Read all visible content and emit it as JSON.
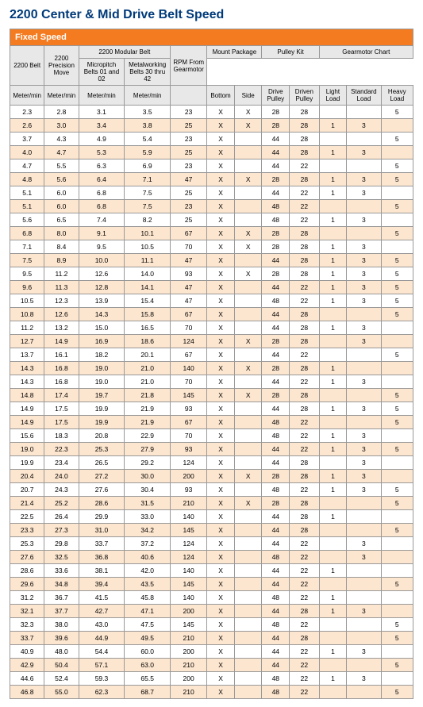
{
  "title": "2200 Center & Mid Drive Belt Speed",
  "section": "Fixed Speed",
  "header": {
    "r1": [
      {
        "t": "2200 Belt",
        "rs": 2
      },
      {
        "t": "2200 Precision Move",
        "rs": 2
      },
      {
        "t": "2200 Modular Belt",
        "cs": 2
      },
      {
        "t": "RPM From Gearmotor",
        "rs": 2
      },
      {
        "t": "Mount Package",
        "cs": 2
      },
      {
        "t": "Pulley Kit",
        "cs": 2
      },
      {
        "t": "Gearmotor Chart",
        "cs": 3
      }
    ],
    "r2": [
      {
        "t": "Micropitch Belts 01 and 02"
      },
      {
        "t": "Metalworking Belts 30 thru 42"
      },
      {
        "t": "",
        "rs": 2
      },
      {
        "t": "",
        "rs": 2
      },
      {
        "t": "",
        "rs": 2
      },
      {
        "t": "",
        "rs": 2
      },
      {
        "t": "",
        "rs": 2
      },
      {
        "t": "",
        "rs": 2
      },
      {
        "t": "",
        "rs": 2
      }
    ],
    "r2b": [
      "Bottom",
      "Side",
      "Drive Pulley",
      "Driven Pulley",
      "Light Load",
      "Standard Load",
      "Heavy Load"
    ],
    "unitRow": [
      "Meter/min",
      "Meter/min",
      "Meter/min",
      "Meter/min",
      "",
      "Bottom",
      "Side",
      "Drive Pulley",
      "Driven Pulley",
      "Light Load",
      "Standard Load",
      "Heavy Load"
    ]
  },
  "rows": [
    [
      "2.3",
      "2.8",
      "3.1",
      "3.5",
      "23",
      "X",
      "X",
      "28",
      "28",
      "",
      "",
      "5"
    ],
    [
      "2.6",
      "3.0",
      "3.4",
      "3.8",
      "25",
      "X",
      "X",
      "28",
      "28",
      "1",
      "3",
      ""
    ],
    [
      "3.7",
      "4.3",
      "4.9",
      "5.4",
      "23",
      "X",
      "",
      "44",
      "28",
      "",
      "",
      "5"
    ],
    [
      "4.0",
      "4.7",
      "5.3",
      "5.9",
      "25",
      "X",
      "",
      "44",
      "28",
      "1",
      "3",
      ""
    ],
    [
      "4.7",
      "5.5",
      "6.3",
      "6.9",
      "23",
      "X",
      "",
      "44",
      "22",
      "",
      "",
      "5"
    ],
    [
      "4.8",
      "5.6",
      "6.4",
      "7.1",
      "47",
      "X",
      "X",
      "28",
      "28",
      "1",
      "3",
      "5"
    ],
    [
      "5.1",
      "6.0",
      "6.8",
      "7.5",
      "25",
      "X",
      "",
      "44",
      "22",
      "1",
      "3",
      ""
    ],
    [
      "5.1",
      "6.0",
      "6.8",
      "7.5",
      "23",
      "X",
      "",
      "48",
      "22",
      "",
      "",
      "5"
    ],
    [
      "5.6",
      "6.5",
      "7.4",
      "8.2",
      "25",
      "X",
      "",
      "48",
      "22",
      "1",
      "3",
      ""
    ],
    [
      "6.8",
      "8.0",
      "9.1",
      "10.1",
      "67",
      "X",
      "X",
      "28",
      "28",
      "",
      "",
      "5"
    ],
    [
      "7.1",
      "8.4",
      "9.5",
      "10.5",
      "70",
      "X",
      "X",
      "28",
      "28",
      "1",
      "3",
      ""
    ],
    [
      "7.5",
      "8.9",
      "10.0",
      "11.1",
      "47",
      "X",
      "",
      "44",
      "28",
      "1",
      "3",
      "5"
    ],
    [
      "9.5",
      "11.2",
      "12.6",
      "14.0",
      "93",
      "X",
      "X",
      "28",
      "28",
      "1",
      "3",
      "5"
    ],
    [
      "9.6",
      "11.3",
      "12.8",
      "14.1",
      "47",
      "X",
      "",
      "44",
      "22",
      "1",
      "3",
      "5"
    ],
    [
      "10.5",
      "12.3",
      "13.9",
      "15.4",
      "47",
      "X",
      "",
      "48",
      "22",
      "1",
      "3",
      "5"
    ],
    [
      "10.8",
      "12.6",
      "14.3",
      "15.8",
      "67",
      "X",
      "",
      "44",
      "28",
      "",
      "",
      "5"
    ],
    [
      "11.2",
      "13.2",
      "15.0",
      "16.5",
      "70",
      "X",
      "",
      "44",
      "28",
      "1",
      "3",
      ""
    ],
    [
      "12.7",
      "14.9",
      "16.9",
      "18.6",
      "124",
      "X",
      "X",
      "28",
      "28",
      "",
      "3",
      ""
    ],
    [
      "13.7",
      "16.1",
      "18.2",
      "20.1",
      "67",
      "X",
      "",
      "44",
      "22",
      "",
      "",
      "5"
    ],
    [
      "14.3",
      "16.8",
      "19.0",
      "21.0",
      "140",
      "X",
      "X",
      "28",
      "28",
      "1",
      "",
      ""
    ],
    [
      "14.3",
      "16.8",
      "19.0",
      "21.0",
      "70",
      "X",
      "",
      "44",
      "22",
      "1",
      "3",
      ""
    ],
    [
      "14.8",
      "17.4",
      "19.7",
      "21.8",
      "145",
      "X",
      "X",
      "28",
      "28",
      "",
      "",
      "5"
    ],
    [
      "14.9",
      "17.5",
      "19.9",
      "21.9",
      "93",
      "X",
      "",
      "44",
      "28",
      "1",
      "3",
      "5"
    ],
    [
      "14.9",
      "17.5",
      "19.9",
      "21.9",
      "67",
      "X",
      "",
      "48",
      "22",
      "",
      "",
      "5"
    ],
    [
      "15.6",
      "18.3",
      "20.8",
      "22.9",
      "70",
      "X",
      "",
      "48",
      "22",
      "1",
      "3",
      ""
    ],
    [
      "19.0",
      "22.3",
      "25.3",
      "27.9",
      "93",
      "X",
      "",
      "44",
      "22",
      "1",
      "3",
      "5"
    ],
    [
      "19.9",
      "23.4",
      "26.5",
      "29.2",
      "124",
      "X",
      "",
      "44",
      "28",
      "",
      "3",
      ""
    ],
    [
      "20.4",
      "24.0",
      "27.2",
      "30.0",
      "200",
      "X",
      "X",
      "28",
      "28",
      "1",
      "3",
      ""
    ],
    [
      "20.7",
      "24.3",
      "27.6",
      "30.4",
      "93",
      "X",
      "",
      "48",
      "22",
      "1",
      "3",
      "5"
    ],
    [
      "21.4",
      "25.2",
      "28.6",
      "31.5",
      "210",
      "X",
      "X",
      "28",
      "28",
      "",
      "",
      "5"
    ],
    [
      "22.5",
      "26.4",
      "29.9",
      "33.0",
      "140",
      "X",
      "",
      "44",
      "28",
      "1",
      "",
      ""
    ],
    [
      "23.3",
      "27.3",
      "31.0",
      "34.2",
      "145",
      "X",
      "",
      "44",
      "28",
      "",
      "",
      "5"
    ],
    [
      "25.3",
      "29.8",
      "33.7",
      "37.2",
      "124",
      "X",
      "",
      "44",
      "22",
      "",
      "3",
      ""
    ],
    [
      "27.6",
      "32.5",
      "36.8",
      "40.6",
      "124",
      "X",
      "",
      "48",
      "22",
      "",
      "3",
      ""
    ],
    [
      "28.6",
      "33.6",
      "38.1",
      "42.0",
      "140",
      "X",
      "",
      "44",
      "22",
      "1",
      "",
      ""
    ],
    [
      "29.6",
      "34.8",
      "39.4",
      "43.5",
      "145",
      "X",
      "",
      "44",
      "22",
      "",
      "",
      "5"
    ],
    [
      "31.2",
      "36.7",
      "41.5",
      "45.8",
      "140",
      "X",
      "",
      "48",
      "22",
      "1",
      "",
      ""
    ],
    [
      "32.1",
      "37.7",
      "42.7",
      "47.1",
      "200",
      "X",
      "",
      "44",
      "28",
      "1",
      "3",
      ""
    ],
    [
      "32.3",
      "38.0",
      "43.0",
      "47.5",
      "145",
      "X",
      "",
      "48",
      "22",
      "",
      "",
      "5"
    ],
    [
      "33.7",
      "39.6",
      "44.9",
      "49.5",
      "210",
      "X",
      "",
      "44",
      "28",
      "",
      "",
      "5"
    ],
    [
      "40.9",
      "48.0",
      "54.4",
      "60.0",
      "200",
      "X",
      "",
      "44",
      "22",
      "1",
      "3",
      ""
    ],
    [
      "42.9",
      "50.4",
      "57.1",
      "63.0",
      "210",
      "X",
      "",
      "44",
      "22",
      "",
      "",
      "5"
    ],
    [
      "44.6",
      "52.4",
      "59.3",
      "65.5",
      "200",
      "X",
      "",
      "48",
      "22",
      "1",
      "3",
      ""
    ],
    [
      "46.8",
      "55.0",
      "62.3",
      "68.7",
      "210",
      "X",
      "",
      "48",
      "22",
      "",
      "",
      "5"
    ]
  ]
}
